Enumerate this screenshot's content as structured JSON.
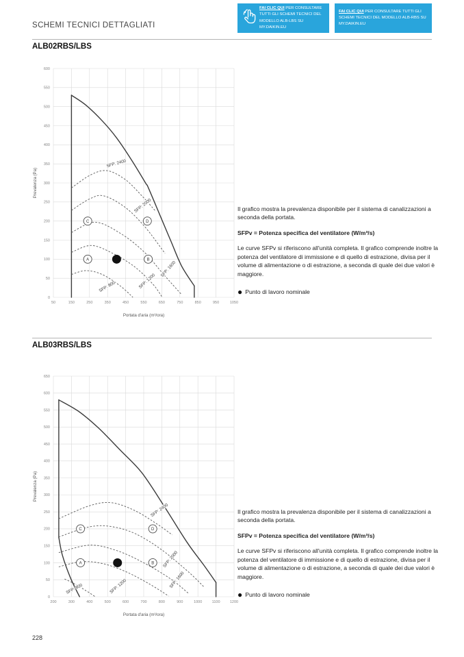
{
  "page": {
    "title": "SCHEMI TECNICI DETTAGLIATI",
    "number": "228"
  },
  "colors": {
    "accent": "#29A5DC",
    "grid": "#d9d9d9",
    "envelope": "#3b3b3b",
    "sfp_curve": "#5a5a5a"
  },
  "header_links": [
    {
      "cta": "FAI CLIC QUI",
      "text": " PER CONSULTARE TUTTI GLI SCHEMI TECNICI DEL MODELLO ALB-LBS SU MY.DAIKIN.EU"
    },
    {
      "cta": "FAI CLIC QUI",
      "text": " PER CONSULTARE TUTTI GLI SCHEMI TECNICI DEL MODELLO ALB-RBS SU MY.DAIKIN.EU"
    }
  ],
  "sections": [
    {
      "heading": "ALB02RBS/LBS",
      "description": {
        "p1": "Il grafico mostra la prevalenza disponibile per il sistema di canalizzazioni a seconda della portata.",
        "sfp": "SFPv = Potenza specifica del ventilatore (W/m³/s)",
        "p2": "Le curve SFPv si riferiscono all'unità completa. Il grafico comprende inoltre la potenza del ventilatore di immissione e di quello di estrazione, divisa per il volume di alimentazione o di estrazione, a seconda di quale dei due valori è maggiore.",
        "legend": "Punto di lavoro nominale"
      }
    },
    {
      "heading": "ALB03RBS/LBS",
      "description": {
        "p1": "Il grafico mostra la prevalenza disponibile per il sistema di canalizzazioni a seconda della portata.",
        "sfp": "SFPv = Potenza specifica del ventilatore (W/m³/s)",
        "p2": "Le curve SFPv si riferiscono all'unità completa. Il grafico comprende inoltre la potenza del ventilatore di immissione e di quello di estrazione, divisa per il volume di alimentazione o di estrazione, a seconda di quale dei due valori è maggiore.",
        "legend": "Punto di lavoro nominale"
      }
    }
  ],
  "chart_data": [
    {
      "type": "line",
      "model": "ALB02RBS/LBS",
      "xlabel": "Portata d'aria (m³/ora)",
      "ylabel": "Prevalenza (Pa)",
      "xlim": [
        50,
        1050
      ],
      "ylim": [
        0,
        600
      ],
      "xticks": [
        50,
        150,
        250,
        350,
        450,
        550,
        650,
        750,
        850,
        950,
        1050
      ],
      "yticks": [
        0,
        50,
        100,
        150,
        200,
        250,
        300,
        350,
        400,
        450,
        500,
        550,
        600
      ],
      "grid": true,
      "envelope": [
        {
          "type": "line",
          "points": [
            [
              150,
              0
            ],
            [
              150,
              530
            ]
          ]
        },
        {
          "type": "smooth",
          "points": [
            [
              150,
              530
            ],
            [
              230,
              504
            ],
            [
              320,
              463
            ],
            [
              400,
              418
            ],
            [
              480,
              362
            ],
            [
              560,
              300
            ],
            [
              575,
              288
            ],
            [
              640,
              215
            ],
            [
              700,
              148
            ],
            [
              760,
              82
            ],
            [
              830,
              30
            ]
          ]
        },
        {
          "type": "line",
          "points": [
            [
              830,
              30
            ],
            [
              830,
              0
            ]
          ]
        }
      ],
      "sfp_curves": [
        {
          "label": "SFP: 800",
          "points": [
            [
              150,
              60
            ],
            [
              230,
              70
            ],
            [
              320,
              60
            ],
            [
              420,
              30
            ],
            [
              490,
              0
            ]
          ],
          "label_pos": [
            350,
            25
          ],
          "label_angle": -30
        },
        {
          "label": "SFP: 1200",
          "points": [
            [
              150,
              118
            ],
            [
              260,
              136
            ],
            [
              380,
              115
            ],
            [
              500,
              80
            ],
            [
              600,
              35
            ],
            [
              650,
              2
            ]
          ],
          "label_pos": [
            572,
            40
          ],
          "label_angle": -42
        },
        {
          "label": "SFP: 1600",
          "points": [
            [
              150,
              170
            ],
            [
              280,
              197
            ],
            [
              420,
              168
            ],
            [
              550,
              120
            ],
            [
              660,
              60
            ],
            [
              758,
              8
            ]
          ],
          "label_pos": [
            690,
            72
          ],
          "label_angle": -48
        },
        {
          "label": "SFP: 2000",
          "points": [
            [
              150,
              228
            ],
            [
              250,
              258
            ],
            [
              330,
              266
            ],
            [
              450,
              235
            ],
            [
              560,
              183
            ],
            [
              668,
              115
            ]
          ],
          "label_pos": [
            548,
            238
          ],
          "label_angle": -38
        },
        {
          "label": "SFP: 2400",
          "points": [
            [
              150,
              287
            ],
            [
              260,
              322
            ],
            [
              350,
              332
            ],
            [
              450,
              308
            ],
            [
              540,
              266
            ],
            [
              612,
              228
            ]
          ],
          "label_pos": [
            400,
            348
          ],
          "label_angle": -16
        }
      ],
      "markers": [
        {
          "label": "A",
          "x": 240,
          "y": 100
        },
        {
          "label": "B",
          "x": 575,
          "y": 100
        },
        {
          "label": "C",
          "x": 240,
          "y": 200
        },
        {
          "label": "D",
          "x": 570,
          "y": 200
        }
      ],
      "nominal_point": {
        "x": 400,
        "y": 100,
        "label": "Punto di lavoro nominale"
      }
    },
    {
      "type": "line",
      "model": "ALB03RBS/LBS",
      "xlabel": "Portata d'aria (m³/ora)",
      "ylabel": "Prevalenza (Pa)",
      "xlim": [
        200,
        1200
      ],
      "ylim": [
        0,
        650
      ],
      "xticks": [
        200,
        300,
        400,
        500,
        600,
        700,
        800,
        900,
        1000,
        1100,
        1200
      ],
      "yticks": [
        0,
        50,
        100,
        150,
        200,
        250,
        300,
        350,
        400,
        450,
        500,
        550,
        600,
        650
      ],
      "grid": true,
      "envelope": [
        {
          "type": "smooth",
          "points": [
            [
              345,
              0
            ],
            [
              295,
              55
            ],
            [
              250,
              122
            ],
            [
              230,
              175
            ]
          ]
        },
        {
          "type": "line",
          "points": [
            [
              230,
              175
            ],
            [
              230,
              580
            ]
          ]
        },
        {
          "type": "smooth",
          "points": [
            [
              230,
              580
            ],
            [
              340,
              546
            ],
            [
              450,
              497
            ],
            [
              570,
              432
            ],
            [
              690,
              365
            ],
            [
              815,
              265
            ],
            [
              940,
              160
            ],
            [
              1030,
              95
            ],
            [
              1100,
              42
            ]
          ]
        },
        {
          "type": "line",
          "points": [
            [
              1100,
              42
            ],
            [
              1100,
              0
            ]
          ]
        }
      ],
      "sfp_curves": [
        {
          "label": "SFP: 800",
          "points": [
            [
              262,
              52
            ],
            [
              310,
              40
            ],
            [
              380,
              18
            ],
            [
              432,
              0
            ]
          ],
          "label_pos": [
            318,
            20
          ],
          "label_angle": -27
        },
        {
          "label": "SFP: 1200",
          "points": [
            [
              230,
              88
            ],
            [
              350,
              103
            ],
            [
              470,
              98
            ],
            [
              600,
              74
            ],
            [
              730,
              38
            ],
            [
              838,
              2
            ]
          ],
          "label_pos": [
            562,
            28
          ],
          "label_angle": -40
        },
        {
          "label": "SFP: 1600",
          "points": [
            [
              230,
              130
            ],
            [
              400,
              152
            ],
            [
              550,
              136
            ],
            [
              700,
              100
            ],
            [
              850,
              52
            ],
            [
              952,
              8
            ]
          ],
          "label_pos": [
            888,
            47
          ],
          "label_angle": -50
        },
        {
          "label": "SFP: 2000",
          "points": [
            [
              230,
              176
            ],
            [
              400,
              206
            ],
            [
              530,
              206
            ],
            [
              660,
              184
            ],
            [
              800,
              138
            ],
            [
              950,
              72
            ],
            [
              1035,
              28
            ]
          ],
          "label_pos": [
            852,
            108
          ],
          "label_angle": -50
        },
        {
          "label": "SFP: 2400",
          "points": [
            [
              230,
              230
            ],
            [
              400,
              268
            ],
            [
              520,
              277
            ],
            [
              650,
              254
            ],
            [
              780,
              212
            ],
            [
              858,
              182
            ]
          ],
          "label_pos": [
            790,
            252
          ],
          "label_angle": -35
        }
      ],
      "markers": [
        {
          "label": "A",
          "x": 350,
          "y": 100
        },
        {
          "label": "B",
          "x": 750,
          "y": 100
        },
        {
          "label": "C",
          "x": 350,
          "y": 200
        },
        {
          "label": "D",
          "x": 750,
          "y": 200
        }
      ],
      "nominal_point": {
        "x": 555,
        "y": 100,
        "label": "Punto di lavoro nominale"
      }
    }
  ]
}
